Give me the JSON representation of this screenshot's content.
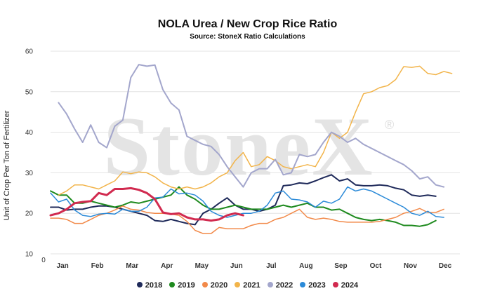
{
  "chart_data": {
    "type": "line",
    "title": "NOLA Urea / New Crop Rice Ratio",
    "subtitle": "Source: StoneX Ratio Calculations",
    "ylabel": "Unit of Crop Per Ton of Fertilizer",
    "ylim": [
      10,
      60
    ],
    "yticks": [
      "10",
      "20",
      "30",
      "40",
      "50",
      "60"
    ],
    "x_origin_label": "0",
    "months": [
      "Jan",
      "Feb",
      "Mar",
      "Apr",
      "May",
      "Jun",
      "Jul",
      "Aug",
      "Sep",
      "Oct",
      "Nov",
      "Dec"
    ],
    "x_unit": "week of year",
    "xlim": [
      1,
      52
    ],
    "grid": "horizontal",
    "legend_position": "bottom",
    "watermark": "StoneX",
    "series": [
      {
        "name": "2018",
        "color": "#1f2a5a",
        "width": 2,
        "x": [
          1,
          2,
          3,
          4,
          5,
          6,
          7,
          8,
          9,
          10,
          11,
          12,
          13,
          14,
          15,
          16,
          17,
          18,
          19,
          20,
          21,
          22,
          23,
          24,
          25,
          26,
          27,
          28,
          29,
          30,
          31,
          32,
          33,
          34,
          35,
          36,
          37,
          38,
          39,
          40,
          41,
          42,
          43,
          44,
          45,
          46,
          47,
          48,
          49,
          50,
          51,
          52
        ],
        "y": [
          21.5,
          21.5,
          20.8,
          21,
          21,
          21.5,
          21.8,
          21.8,
          21.5,
          21,
          20.5,
          20,
          19.5,
          18.2,
          18,
          18.5,
          18,
          17.5,
          17.2,
          20,
          21,
          22.5,
          23.8,
          22,
          21,
          21,
          20.5,
          21,
          22,
          26.8,
          27,
          27.5,
          27.3,
          28,
          28.8,
          29.5,
          28,
          28.5,
          27,
          26.8,
          26.8,
          27,
          26.8,
          26.2,
          25.8,
          24.5,
          24.2,
          24.5,
          24.2,
          null,
          null,
          null
        ]
      },
      {
        "name": "2019",
        "color": "#1e8a1e",
        "width": 2,
        "x": [
          1,
          2,
          3,
          4,
          5,
          6,
          7,
          8,
          9,
          10,
          11,
          12,
          13,
          14,
          15,
          16,
          17,
          18,
          19,
          20,
          21,
          22,
          23,
          24,
          25,
          26,
          27,
          28,
          29,
          30,
          31,
          32,
          33,
          34,
          35,
          36,
          37,
          38,
          39,
          40,
          41,
          42,
          43,
          44,
          45,
          46,
          47,
          48,
          49,
          50,
          51,
          52
        ],
        "y": [
          25.5,
          24.5,
          24.5,
          22.5,
          22.5,
          23,
          22.5,
          22,
          21.5,
          22,
          22.8,
          22.5,
          23,
          23.5,
          24,
          24.5,
          26.5,
          24.5,
          23.5,
          22,
          21,
          21,
          21.5,
          22,
          21.5,
          21,
          21,
          21,
          21.5,
          22,
          21.5,
          22,
          22.5,
          21.5,
          21.5,
          20.8,
          21,
          20,
          19,
          18.5,
          18.2,
          18.5,
          18.2,
          17.8,
          17,
          17,
          16.8,
          17.2,
          18.2,
          null,
          null,
          null
        ]
      },
      {
        "name": "2020",
        "color": "#f28a4a",
        "width": 1.5,
        "x": [
          1,
          2,
          3,
          4,
          5,
          6,
          7,
          8,
          9,
          10,
          11,
          12,
          13,
          14,
          15,
          16,
          17,
          18,
          19,
          20,
          21,
          22,
          23,
          24,
          25,
          26,
          27,
          28,
          29,
          30,
          31,
          32,
          33,
          34,
          35,
          36,
          37,
          38,
          39,
          40,
          41,
          42,
          43,
          44,
          45,
          46,
          47,
          48,
          49,
          50,
          51,
          52
        ],
        "y": [
          18.8,
          18.8,
          18.5,
          17.5,
          17.5,
          18.5,
          19.5,
          20,
          20.8,
          21.8,
          21,
          20.8,
          20.2,
          20,
          20,
          19.8,
          19.5,
          18,
          15.8,
          15,
          15,
          16.5,
          16.2,
          16.2,
          16.2,
          17,
          17.5,
          17.5,
          18.5,
          19,
          20,
          21,
          19,
          18.5,
          18.8,
          18.5,
          18,
          17.8,
          17.8,
          17.8,
          17.8,
          18,
          18.5,
          19,
          20,
          20.5,
          21.2,
          20.2,
          20.2,
          21,
          null,
          null
        ]
      },
      {
        "name": "2021",
        "color": "#f2b44a",
        "width": 1.5,
        "x": [
          1,
          2,
          3,
          4,
          5,
          6,
          7,
          8,
          9,
          10,
          11,
          12,
          13,
          14,
          15,
          16,
          17,
          18,
          19,
          20,
          21,
          22,
          23,
          24,
          25,
          26,
          27,
          28,
          29,
          30,
          31,
          32,
          33,
          34,
          35,
          36,
          37,
          38,
          39,
          40,
          41,
          42,
          43,
          44,
          45,
          46,
          47,
          48,
          49,
          50,
          51,
          52
        ],
        "y": [
          null,
          24.5,
          25.5,
          27,
          27,
          26.5,
          26,
          27,
          28,
          30.2,
          29.8,
          30.2,
          30,
          29,
          27.5,
          26.5,
          26,
          26.5,
          26,
          26.5,
          27.5,
          29,
          30,
          33,
          35,
          31.5,
          32,
          34,
          33,
          31.5,
          31,
          31.5,
          32,
          31.5,
          35,
          40,
          38.5,
          40,
          45,
          49.5,
          50,
          51,
          51.5,
          53,
          56.2,
          56,
          56.3,
          54.5,
          54.2,
          55,
          54.5,
          null
        ]
      },
      {
        "name": "2022",
        "color": "#a3a6cc",
        "width": 2,
        "x": [
          1,
          2,
          3,
          4,
          5,
          6,
          7,
          8,
          9,
          10,
          11,
          12,
          13,
          14,
          15,
          16,
          17,
          18,
          19,
          20,
          21,
          22,
          23,
          24,
          25,
          26,
          27,
          28,
          29,
          30,
          31,
          32,
          33,
          34,
          35,
          36,
          37,
          38,
          39,
          40,
          41,
          42,
          43,
          44,
          45,
          46,
          47,
          48,
          49,
          50,
          51,
          52
        ],
        "y": [
          null,
          47.3,
          44.5,
          40.8,
          37.5,
          41.8,
          37.5,
          36.2,
          41.5,
          43,
          53.5,
          56.7,
          56.3,
          56.6,
          50.5,
          47.2,
          45.5,
          39,
          38,
          37,
          36.5,
          34.5,
          31.5,
          29,
          26.5,
          30,
          31,
          31,
          33.3,
          29.5,
          30,
          34.5,
          34,
          34.5,
          37.5,
          40,
          39,
          37.5,
          38.5,
          37,
          36,
          35,
          34,
          33,
          32,
          30.5,
          28.5,
          29,
          27,
          26.5,
          null,
          null
        ]
      },
      {
        "name": "2023",
        "color": "#2b8ad8",
        "width": 1.5,
        "x": [
          1,
          2,
          3,
          4,
          5,
          6,
          7,
          8,
          9,
          10,
          11,
          12,
          13,
          14,
          15,
          16,
          17,
          18,
          19,
          20,
          21,
          22,
          23,
          24,
          25,
          26,
          27,
          28,
          29,
          30,
          31,
          32,
          33,
          34,
          35,
          36,
          37,
          38,
          39,
          40,
          41,
          42,
          43,
          44,
          45,
          46,
          47,
          48,
          49,
          50,
          51,
          52
        ],
        "y": [
          25,
          22.8,
          23.5,
          20.8,
          19.5,
          19.2,
          19.8,
          20,
          19.8,
          21,
          20.5,
          20.5,
          21.5,
          23.8,
          24,
          26,
          24.8,
          25,
          24.5,
          23,
          20.5,
          19.5,
          19,
          19.5,
          20,
          20,
          20.5,
          22,
          25,
          25.5,
          23.5,
          23.3,
          22.8,
          21.5,
          23,
          22.5,
          23.5,
          26.5,
          25.5,
          26,
          25.5,
          24.5,
          23.5,
          22.5,
          21.5,
          20,
          19.5,
          20.5,
          19.2,
          19,
          null,
          null
        ]
      },
      {
        "name": "2024",
        "color": "#d12a4f",
        "width": 3,
        "x": [
          1,
          2,
          3,
          4,
          5,
          6,
          7,
          8,
          9,
          10,
          11,
          12,
          13,
          14,
          15,
          16,
          17,
          18,
          19,
          20,
          21,
          22,
          23,
          24,
          25,
          26,
          27,
          28,
          29,
          30,
          31,
          32,
          33,
          34,
          35,
          36,
          37,
          38,
          39,
          40,
          41,
          42,
          43,
          44,
          45,
          46,
          47,
          48,
          49,
          50,
          51,
          52
        ],
        "y": [
          19.5,
          20,
          21,
          22.5,
          22.8,
          23,
          25,
          24.5,
          26,
          26,
          26.2,
          25.8,
          25,
          23.5,
          20.2,
          19.8,
          20,
          19,
          18.5,
          18.5,
          18.2,
          18.5,
          19.5,
          20,
          19.5,
          null,
          null,
          null,
          null,
          null,
          null,
          null,
          null,
          null,
          null,
          null,
          null,
          null,
          null,
          null,
          null,
          null,
          null,
          null,
          null,
          null,
          null,
          null,
          null,
          null,
          null,
          null
        ]
      }
    ]
  }
}
